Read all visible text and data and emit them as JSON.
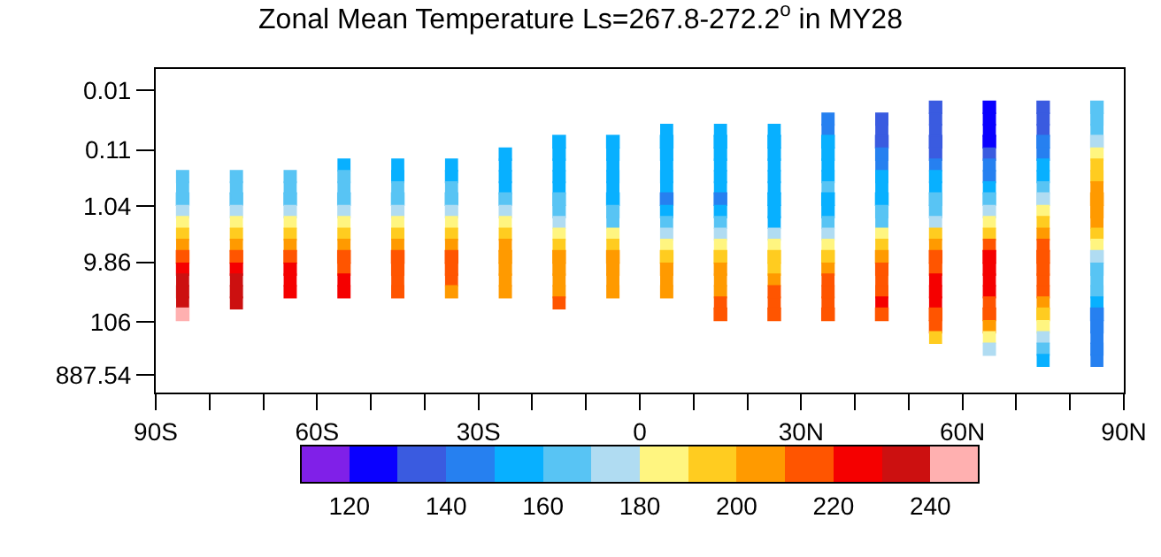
{
  "chart_data": {
    "type": "scatter",
    "title": "Zonal Mean Temperature Ls=267.8-272.2$^{o}$ in MY28",
    "x": [
      -85,
      -75,
      -65,
      -55,
      -45,
      -35,
      -25,
      -15,
      -5,
      5,
      15,
      25,
      35,
      45,
      55,
      65,
      75,
      85
    ],
    "series": [
      {
        "values": [
          null,
          null,
          null,
          null,
          null,
          null,
          null,
          null,
          null,
          null,
          null,
          null,
          null,
          null,
          0.02,
          0.02,
          0.02,
          0.02
        ],
        "cvalues": [
          null,
          null,
          null,
          null,
          null,
          null,
          null,
          null,
          null,
          null,
          null,
          null,
          null,
          null,
          135,
          125,
          135,
          165
        ],
        "colors": [
          null,
          null,
          null,
          null,
          null,
          null,
          null,
          null,
          null,
          null,
          null,
          null,
          null,
          null,
          "#3a5be0",
          "#0a00ff",
          "#3a5be0",
          "#58c4f4"
        ]
      },
      {
        "values": [
          null,
          null,
          null,
          null,
          null,
          null,
          null,
          null,
          null,
          null,
          null,
          null,
          0.032,
          0.032,
          0.032,
          0.032,
          0.032,
          0.032
        ],
        "cvalues": [
          null,
          null,
          null,
          null,
          null,
          null,
          null,
          null,
          null,
          null,
          null,
          null,
          145,
          135,
          135,
          125,
          135,
          165
        ],
        "colors": [
          null,
          null,
          null,
          null,
          null,
          null,
          null,
          null,
          null,
          null,
          null,
          null,
          "#2680f0",
          "#3a5be0",
          "#3a5be0",
          "#0a00ff",
          "#3a5be0",
          "#58c4f4"
        ]
      },
      {
        "values": [
          null,
          null,
          null,
          null,
          null,
          null,
          null,
          null,
          null,
          0.05,
          0.05,
          0.05,
          0.05,
          0.05,
          0.05,
          0.05,
          0.05,
          0.05
        ],
        "cvalues": [
          null,
          null,
          null,
          null,
          null,
          null,
          null,
          null,
          null,
          155,
          155,
          155,
          145,
          135,
          135,
          125,
          135,
          165
        ],
        "colors": [
          null,
          null,
          null,
          null,
          null,
          null,
          null,
          null,
          null,
          "#08b0ff",
          "#08b0ff",
          "#08b0ff",
          "#2680f0",
          "#3a5be0",
          "#3a5be0",
          "#0a00ff",
          "#3a5be0",
          "#58c4f4"
        ]
      },
      {
        "values": [
          null,
          null,
          null,
          null,
          null,
          null,
          null,
          0.079,
          0.079,
          0.079,
          0.079,
          0.079,
          0.079,
          0.079,
          0.079,
          0.079,
          0.079,
          0.079
        ],
        "cvalues": [
          null,
          null,
          null,
          null,
          null,
          null,
          null,
          155,
          155,
          155,
          155,
          155,
          155,
          135,
          135,
          125,
          145,
          175
        ],
        "colors": [
          null,
          null,
          null,
          null,
          null,
          null,
          null,
          "#08b0ff",
          "#08b0ff",
          "#08b0ff",
          "#08b0ff",
          "#08b0ff",
          "#08b0ff",
          "#3a5be0",
          "#3a5be0",
          "#0a00ff",
          "#2680f0",
          "#b0dcf2"
        ]
      },
      {
        "values": [
          null,
          null,
          null,
          null,
          null,
          null,
          0.13,
          0.13,
          0.13,
          0.13,
          0.13,
          0.13,
          0.13,
          0.13,
          0.13,
          0.13,
          0.13,
          0.13
        ],
        "cvalues": [
          null,
          null,
          null,
          null,
          null,
          null,
          155,
          155,
          155,
          155,
          155,
          155,
          155,
          145,
          135,
          135,
          145,
          185
        ],
        "colors": [
          null,
          null,
          null,
          null,
          null,
          null,
          "#08b0ff",
          "#08b0ff",
          "#08b0ff",
          "#08b0ff",
          "#08b0ff",
          "#08b0ff",
          "#08b0ff",
          "#2680f0",
          "#3a5be0",
          "#3a5be0",
          "#2680f0",
          "#fff580"
        ]
      },
      {
        "values": [
          null,
          null,
          null,
          0.2,
          0.2,
          0.2,
          0.2,
          0.2,
          0.2,
          0.2,
          0.2,
          0.2,
          0.2,
          0.2,
          0.2,
          0.2,
          0.2,
          0.2
        ],
        "cvalues": [
          null,
          null,
          null,
          155,
          155,
          155,
          155,
          155,
          155,
          155,
          155,
          155,
          155,
          145,
          145,
          145,
          155,
          195
        ],
        "colors": [
          null,
          null,
          null,
          "#08b0ff",
          "#08b0ff",
          "#08b0ff",
          "#08b0ff",
          "#08b0ff",
          "#08b0ff",
          "#08b0ff",
          "#08b0ff",
          "#08b0ff",
          "#08b0ff",
          "#2680f0",
          "#2680f0",
          "#2680f0",
          "#08b0ff",
          "#ffcc20"
        ]
      },
      {
        "values": [
          0.32,
          0.32,
          0.32,
          0.32,
          0.32,
          0.32,
          0.32,
          0.32,
          0.32,
          0.32,
          0.32,
          0.32,
          0.32,
          0.32,
          0.32,
          0.32,
          0.32,
          0.32
        ],
        "cvalues": [
          165,
          165,
          165,
          165,
          155,
          155,
          155,
          155,
          155,
          155,
          155,
          155,
          155,
          155,
          155,
          145,
          155,
          195
        ],
        "colors": [
          "#58c4f4",
          "#58c4f4",
          "#58c4f4",
          "#58c4f4",
          "#08b0ff",
          "#08b0ff",
          "#08b0ff",
          "#08b0ff",
          "#08b0ff",
          "#08b0ff",
          "#08b0ff",
          "#08b0ff",
          "#08b0ff",
          "#08b0ff",
          "#08b0ff",
          "#2680f0",
          "#08b0ff",
          "#ffcc20"
        ]
      },
      {
        "values": [
          0.5,
          0.5,
          0.5,
          0.5,
          0.5,
          0.5,
          0.5,
          0.5,
          0.5,
          0.5,
          0.5,
          0.5,
          0.5,
          0.5,
          0.5,
          0.5,
          0.5,
          0.5
        ],
        "cvalues": [
          165,
          165,
          165,
          165,
          165,
          165,
          155,
          155,
          155,
          155,
          155,
          155,
          165,
          155,
          155,
          155,
          165,
          205
        ],
        "colors": [
          "#58c4f4",
          "#58c4f4",
          "#58c4f4",
          "#58c4f4",
          "#58c4f4",
          "#58c4f4",
          "#08b0ff",
          "#08b0ff",
          "#08b0ff",
          "#08b0ff",
          "#08b0ff",
          "#08b0ff",
          "#58c4f4",
          "#08b0ff",
          "#08b0ff",
          "#08b0ff",
          "#58c4f4",
          "#ff9a00"
        ]
      },
      {
        "values": [
          0.79,
          0.79,
          0.79,
          0.79,
          0.79,
          0.79,
          0.79,
          0.79,
          0.79,
          0.79,
          0.79,
          0.79,
          0.79,
          0.79,
          0.79,
          0.79,
          0.79,
          0.79
        ],
        "cvalues": [
          165,
          165,
          165,
          165,
          165,
          165,
          165,
          165,
          155,
          145,
          145,
          155,
          155,
          155,
          165,
          165,
          175,
          205
        ],
        "colors": [
          "#58c4f4",
          "#58c4f4",
          "#58c4f4",
          "#58c4f4",
          "#58c4f4",
          "#58c4f4",
          "#58c4f4",
          "#58c4f4",
          "#08b0ff",
          "#2680f0",
          "#2680f0",
          "#08b0ff",
          "#08b0ff",
          "#08b0ff",
          "#58c4f4",
          "#58c4f4",
          "#b0dcf2",
          "#ff9a00"
        ]
      },
      {
        "values": [
          1.3,
          1.3,
          1.3,
          1.3,
          1.3,
          1.3,
          1.3,
          1.3,
          1.3,
          1.3,
          1.3,
          1.3,
          1.3,
          1.3,
          1.3,
          1.3,
          1.3,
          1.3
        ],
        "cvalues": [
          175,
          175,
          175,
          175,
          175,
          175,
          175,
          165,
          165,
          155,
          155,
          155,
          155,
          165,
          165,
          175,
          185,
          205
        ],
        "colors": [
          "#b0dcf2",
          "#b0dcf2",
          "#b0dcf2",
          "#b0dcf2",
          "#b0dcf2",
          "#b0dcf2",
          "#b0dcf2",
          "#58c4f4",
          "#58c4f4",
          "#08b0ff",
          "#08b0ff",
          "#08b0ff",
          "#08b0ff",
          "#58c4f4",
          "#58c4f4",
          "#b0dcf2",
          "#fff580",
          "#ff9a00"
        ]
      },
      {
        "values": [
          2,
          2,
          2,
          2,
          2,
          2,
          2,
          2,
          2,
          2,
          2,
          2,
          2,
          2,
          2,
          2,
          2,
          2
        ],
        "cvalues": [
          185,
          185,
          185,
          185,
          185,
          185,
          185,
          175,
          165,
          165,
          165,
          155,
          165,
          165,
          175,
          185,
          195,
          205
        ],
        "colors": [
          "#fff580",
          "#fff580",
          "#fff580",
          "#fff580",
          "#fff580",
          "#fff580",
          "#fff580",
          "#b0dcf2",
          "#58c4f4",
          "#58c4f4",
          "#58c4f4",
          "#08b0ff",
          "#58c4f4",
          "#58c4f4",
          "#b0dcf2",
          "#fff580",
          "#ffcc20",
          "#ff9a00"
        ]
      },
      {
        "values": [
          3.2,
          3.2,
          3.2,
          3.2,
          3.2,
          3.2,
          3.2,
          3.2,
          3.2,
          3.2,
          3.2,
          3.2,
          3.2,
          3.2,
          3.2,
          3.2,
          3.2,
          3.2
        ],
        "cvalues": [
          195,
          195,
          195,
          195,
          195,
          195,
          195,
          185,
          185,
          175,
          175,
          175,
          175,
          185,
          195,
          195,
          205,
          195
        ],
        "colors": [
          "#ffcc20",
          "#ffcc20",
          "#ffcc20",
          "#ffcc20",
          "#ffcc20",
          "#ffcc20",
          "#ffcc20",
          "#fff580",
          "#fff580",
          "#b0dcf2",
          "#b0dcf2",
          "#b0dcf2",
          "#b0dcf2",
          "#fff580",
          "#ffcc20",
          "#ffcc20",
          "#ff9a00",
          "#ffcc20"
        ]
      },
      {
        "values": [
          5,
          5,
          5,
          5,
          5,
          5,
          5,
          5,
          5,
          5,
          5,
          5,
          5,
          5,
          5,
          5,
          5,
          5
        ],
        "cvalues": [
          205,
          205,
          205,
          205,
          205,
          205,
          205,
          195,
          195,
          185,
          185,
          185,
          185,
          195,
          205,
          215,
          215,
          185
        ],
        "colors": [
          "#ff9a00",
          "#ff9a00",
          "#ff9a00",
          "#ff9a00",
          "#ff9a00",
          "#ff9a00",
          "#ff9a00",
          "#ffcc20",
          "#ffcc20",
          "#fff580",
          "#fff580",
          "#fff580",
          "#fff580",
          "#ffcc20",
          "#ff9a00",
          "#ff5500",
          "#ff5500",
          "#fff580"
        ]
      },
      {
        "values": [
          7.9,
          7.9,
          7.9,
          7.9,
          7.9,
          7.9,
          7.9,
          7.9,
          7.9,
          7.9,
          7.9,
          7.9,
          7.9,
          7.9,
          7.9,
          7.9,
          7.9,
          7.9
        ],
        "cvalues": [
          215,
          215,
          215,
          215,
          215,
          215,
          205,
          205,
          205,
          195,
          195,
          195,
          195,
          205,
          215,
          225,
          215,
          175
        ],
        "colors": [
          "#ff5500",
          "#ff5500",
          "#ff5500",
          "#ff5500",
          "#ff5500",
          "#ff5500",
          "#ff9a00",
          "#ff9a00",
          "#ff9a00",
          "#ffcc20",
          "#ffcc20",
          "#ffcc20",
          "#ffcc20",
          "#ff9a00",
          "#ff5500",
          "#f50000",
          "#ff5500",
          "#b0dcf2"
        ]
      },
      {
        "values": [
          13,
          13,
          13,
          13,
          13,
          13,
          13,
          13,
          13,
          13,
          13,
          13,
          13,
          13,
          13,
          13,
          13,
          13
        ],
        "cvalues": [
          225,
          225,
          225,
          215,
          215,
          215,
          205,
          205,
          205,
          205,
          205,
          195,
          205,
          215,
          215,
          225,
          215,
          165
        ],
        "colors": [
          "#f50000",
          "#f50000",
          "#f50000",
          "#ff5500",
          "#ff5500",
          "#ff5500",
          "#ff9a00",
          "#ff9a00",
          "#ff9a00",
          "#ff9a00",
          "#ff9a00",
          "#ffcc20",
          "#ff9a00",
          "#ff5500",
          "#ff5500",
          "#f50000",
          "#ff5500",
          "#58c4f4"
        ]
      },
      {
        "values": [
          20,
          20,
          20,
          20,
          20,
          20,
          20,
          20,
          20,
          20,
          20,
          20,
          20,
          20,
          20,
          20,
          20,
          20
        ],
        "cvalues": [
          235,
          235,
          225,
          225,
          215,
          215,
          205,
          205,
          205,
          205,
          205,
          205,
          215,
          215,
          225,
          225,
          215,
          165
        ],
        "colors": [
          "#cc1010",
          "#cc1010",
          "#f50000",
          "#f50000",
          "#ff5500",
          "#ff5500",
          "#ff9a00",
          "#ff9a00",
          "#ff9a00",
          "#ff9a00",
          "#ff9a00",
          "#ff9a00",
          "#ff5500",
          "#ff5500",
          "#f50000",
          "#f50000",
          "#ff5500",
          "#58c4f4"
        ]
      },
      {
        "values": [
          32,
          32,
          32,
          32,
          32,
          32,
          32,
          32,
          32,
          32,
          32,
          32,
          32,
          32,
          32,
          32,
          32,
          32
        ],
        "cvalues": [
          235,
          235,
          225,
          225,
          215,
          205,
          205,
          205,
          205,
          205,
          205,
          215,
          215,
          215,
          225,
          225,
          215,
          165
        ],
        "colors": [
          "#cc1010",
          "#cc1010",
          "#f50000",
          "#f50000",
          "#ff5500",
          "#ff9a00",
          "#ff9a00",
          "#ff9a00",
          "#ff9a00",
          "#ff9a00",
          "#ff9a00",
          "#ff5500",
          "#ff5500",
          "#ff5500",
          "#f50000",
          "#f50000",
          "#ff5500",
          "#58c4f4"
        ]
      },
      {
        "values": [
          50,
          50,
          null,
          null,
          null,
          null,
          null,
          50,
          null,
          null,
          50,
          50,
          50,
          50,
          50,
          50,
          50,
          50
        ],
        "cvalues": [
          235,
          235,
          null,
          null,
          null,
          null,
          null,
          215,
          null,
          null,
          215,
          215,
          215,
          225,
          225,
          215,
          205,
          155
        ],
        "colors": [
          "#cc1010",
          "#cc1010",
          null,
          null,
          null,
          null,
          null,
          "#ff5500",
          null,
          null,
          "#ff5500",
          "#ff5500",
          "#ff5500",
          "#f50000",
          "#f50000",
          "#ff5500",
          "#ff9a00",
          "#08b0ff"
        ]
      },
      {
        "values": [
          79,
          null,
          null,
          null,
          null,
          null,
          null,
          null,
          null,
          null,
          79,
          79,
          79,
          79,
          79,
          79,
          79,
          79
        ],
        "cvalues": [
          245,
          null,
          null,
          null,
          null,
          null,
          null,
          null,
          null,
          null,
          215,
          215,
          215,
          215,
          215,
          215,
          195,
          145
        ],
        "colors": [
          "#ffb0b0",
          null,
          null,
          null,
          null,
          null,
          null,
          null,
          null,
          null,
          "#ff5500",
          "#ff5500",
          "#ff5500",
          "#ff5500",
          "#ff5500",
          "#ff5500",
          "#ffcc20",
          "#2680f0"
        ]
      },
      {
        "values": [
          null,
          null,
          null,
          null,
          null,
          null,
          null,
          null,
          null,
          null,
          null,
          null,
          null,
          null,
          130,
          130,
          130,
          130
        ],
        "cvalues": [
          null,
          null,
          null,
          null,
          null,
          null,
          null,
          null,
          null,
          null,
          null,
          null,
          null,
          null,
          215,
          205,
          185,
          145
        ],
        "colors": [
          null,
          null,
          null,
          null,
          null,
          null,
          null,
          null,
          null,
          null,
          null,
          null,
          null,
          null,
          "#ff5500",
          "#ff9a00",
          "#fff580",
          "#2680f0"
        ]
      },
      {
        "values": [
          null,
          null,
          null,
          null,
          null,
          null,
          null,
          null,
          null,
          null,
          null,
          null,
          null,
          null,
          200,
          200,
          200,
          200
        ],
        "cvalues": [
          null,
          null,
          null,
          null,
          null,
          null,
          null,
          null,
          null,
          null,
          null,
          null,
          null,
          null,
          195,
          185,
          175,
          145
        ],
        "colors": [
          null,
          null,
          null,
          null,
          null,
          null,
          null,
          null,
          null,
          null,
          null,
          null,
          null,
          null,
          "#ffcc20",
          "#fff580",
          "#b0dcf2",
          "#2680f0"
        ]
      },
      {
        "values": [
          null,
          null,
          null,
          null,
          null,
          null,
          null,
          null,
          null,
          null,
          null,
          null,
          null,
          null,
          null,
          320,
          320,
          320
        ],
        "cvalues": [
          null,
          null,
          null,
          null,
          null,
          null,
          null,
          null,
          null,
          null,
          null,
          null,
          null,
          null,
          null,
          175,
          165,
          145
        ],
        "colors": [
          null,
          null,
          null,
          null,
          null,
          null,
          null,
          null,
          null,
          null,
          null,
          null,
          null,
          null,
          null,
          "#b0dcf2",
          "#58c4f4",
          "#2680f0"
        ]
      },
      {
        "values": [
          null,
          null,
          null,
          null,
          null,
          null,
          null,
          null,
          null,
          null,
          null,
          null,
          null,
          null,
          null,
          null,
          500,
          500
        ],
        "cvalues": [
          null,
          null,
          null,
          null,
          null,
          null,
          null,
          null,
          null,
          null,
          null,
          null,
          null,
          null,
          null,
          null,
          155,
          145
        ],
        "colors": [
          null,
          null,
          null,
          null,
          null,
          null,
          null,
          null,
          null,
          null,
          null,
          null,
          null,
          null,
          null,
          null,
          "#08b0ff",
          "#2680f0"
        ]
      }
    ],
    "colors": [
      "#8020e8",
      "#0a00ff",
      "#3a5be0",
      "#2680f0",
      "#08b0ff",
      "#58c4f4",
      "#b0dcf2",
      "#fff580",
      "#ffcc20",
      "#ff9a00",
      "#ff5500",
      "#f50000",
      "#cc1010",
      "#ffb0b0"
    ],
    "clim": [
      110,
      250
    ],
    "cticks": [
      120,
      140,
      160,
      180,
      200,
      220,
      240
    ],
    "xlim": [
      -90,
      90
    ],
    "xticks": [
      {
        "value": -90,
        "label": "90S"
      },
      {
        "value": -80,
        "label": null
      },
      {
        "value": -70,
        "label": null
      },
      {
        "value": -60,
        "label": "60S"
      },
      {
        "value": -50,
        "label": null
      },
      {
        "value": -40,
        "label": null
      },
      {
        "value": -30,
        "label": "30S"
      },
      {
        "value": -20,
        "label": null
      },
      {
        "value": -10,
        "label": null
      },
      0,
      {
        "value": 10,
        "label": null
      },
      {
        "value": 20,
        "label": null
      },
      {
        "value": 30,
        "label": "30N"
      },
      {
        "value": 40,
        "label": null
      },
      {
        "value": 50,
        "label": null
      },
      {
        "value": 60,
        "label": "60N"
      },
      {
        "value": 70,
        "label": null
      },
      {
        "value": 80,
        "label": null
      },
      {
        "value": 90,
        "label": "90N"
      }
    ],
    "ylim": [
      1810,
      0.0043
    ],
    "yticks": [
      0.01,
      0.11,
      1.04,
      9.86,
      106,
      887.54
    ],
    "log": true
  }
}
